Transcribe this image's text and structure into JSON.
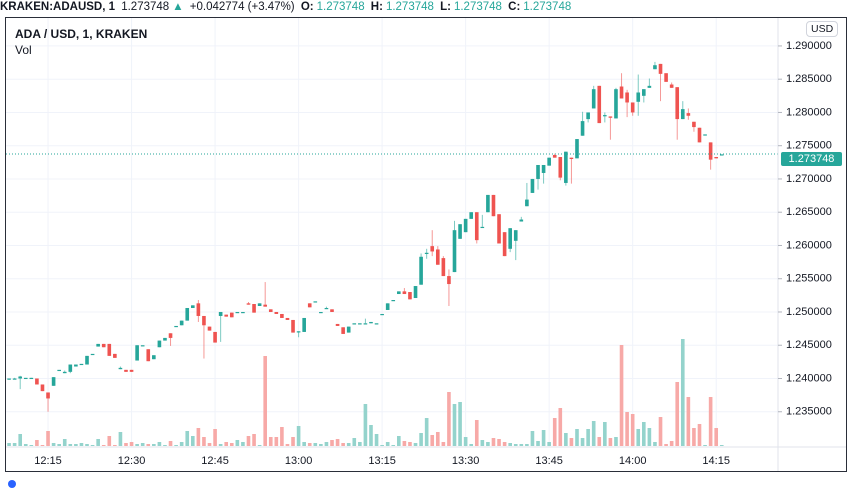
{
  "legend": {
    "symbol": "KRAKEN:ADAUSD, 1",
    "last": "1.273748",
    "arrow": "▲",
    "change": "+0.042774 (+3.47%)",
    "o_label": "O:",
    "o": "1.273748",
    "h_label": "H:",
    "h": "1.273748",
    "l_label": "L:",
    "l": "1.273748",
    "c_label": "C:",
    "c": "1.273748"
  },
  "pane": {
    "title": "ADA / USD, 1, KRAKEN",
    "vol_label": "Vol",
    "currency": "USD",
    "current_price": "1.273748"
  },
  "colors": {
    "up": "#26a69a",
    "down": "#ef5350",
    "vol_up": "#94d3cc",
    "vol_down": "#f7a9a7",
    "grid": "#f0f3fa"
  },
  "chart_data": {
    "type": "candlestick",
    "title": "ADA / USD, 1, KRAKEN",
    "ylabel": "USD",
    "ylim": [
      1.2297,
      1.2942
    ],
    "xlim_minutes_after_12": [
      7.45,
      146.1
    ],
    "volume_scale_max": 429,
    "current_price": 1.273748,
    "y_ticks": [
      "1.290000",
      "1.285000",
      "1.280000",
      "1.275000",
      "1.270000",
      "1.265000",
      "1.260000",
      "1.255000",
      "1.250000",
      "1.245000",
      "1.240000",
      "1.235000"
    ],
    "x_ticks": [
      "12:15",
      "12:30",
      "12:45",
      "13:00",
      "13:15",
      "13:30",
      "13:45",
      "14:00",
      "14:15"
    ],
    "candle_fields": [
      "time",
      "open",
      "high",
      "low",
      "close",
      "volume"
    ],
    "candles": [
      [
        "12:08",
        1.2399,
        1.24,
        1.2398,
        1.24,
        3
      ],
      [
        "12:09",
        1.24,
        1.2401,
        1.2399,
        1.24,
        3
      ],
      [
        "12:10",
        1.24,
        1.2404,
        1.2384,
        1.2403,
        12
      ],
      [
        "12:11",
        1.2401,
        1.2401,
        1.2401,
        1.2401,
        2
      ],
      [
        "12:12",
        1.2401,
        1.2401,
        1.24,
        1.2401,
        1
      ],
      [
        "12:13",
        1.24,
        1.24,
        1.2391,
        1.2391,
        6
      ],
      [
        "12:14",
        1.2391,
        1.2391,
        1.2381,
        1.2381,
        1
      ],
      [
        "12:15",
        1.2379,
        1.2379,
        1.235,
        1.237,
        15
      ],
      [
        "12:16",
        1.2389,
        1.2402,
        1.2389,
        1.2402,
        3
      ],
      [
        "12:17",
        1.2413,
        1.2413,
        1.2413,
        1.2413,
        2
      ],
      [
        "12:18",
        1.2408,
        1.2412,
        1.2408,
        1.241,
        7
      ],
      [
        "12:19",
        1.241,
        1.2421,
        1.2408,
        1.2421,
        2
      ],
      [
        "12:20",
        1.2418,
        1.2421,
        1.2418,
        1.2421,
        2
      ],
      [
        "12:21",
        1.2422,
        1.2422,
        1.2422,
        1.2422,
        3
      ],
      [
        "12:22",
        1.2421,
        1.2434,
        1.2421,
        1.2434,
        2
      ],
      [
        "12:23",
        1.2437,
        1.2437,
        1.2437,
        1.2437,
        1
      ],
      [
        "12:24",
        1.2448,
        1.2452,
        1.2448,
        1.2452,
        7
      ],
      [
        "12:25",
        1.2452,
        1.2452,
        1.2447,
        1.2447,
        1
      ],
      [
        "12:26",
        1.2452,
        1.2452,
        1.2434,
        1.2434,
        10
      ],
      [
        "12:27",
        1.2437,
        1.2437,
        1.2431,
        1.2431,
        1
      ],
      [
        "12:28",
        1.2414,
        1.2418,
        1.2414,
        1.2416,
        14
      ],
      [
        "12:29",
        1.2413,
        1.2413,
        1.241,
        1.241,
        3
      ],
      [
        "12:30",
        1.2413,
        1.2413,
        1.241,
        1.241,
        4
      ],
      [
        "12:31",
        1.2427,
        1.245,
        1.2427,
        1.245,
        2
      ],
      [
        "12:32",
        1.245,
        1.245,
        1.245,
        1.245,
        3
      ],
      [
        "12:33",
        1.2444,
        1.2444,
        1.2426,
        1.2426,
        2
      ],
      [
        "12:34",
        1.2429,
        1.2435,
        1.2429,
        1.2435,
        2
      ],
      [
        "12:35",
        1.2447,
        1.2457,
        1.2447,
        1.2457,
        4
      ],
      [
        "12:36",
        1.2457,
        1.2461,
        1.2457,
        1.2461,
        1
      ],
      [
        "12:37",
        1.2468,
        1.2468,
        1.2449,
        1.2461,
        5
      ],
      [
        "12:38",
        1.2479,
        1.2479,
        1.2479,
        1.2479,
        1
      ],
      [
        "12:39",
        1.248,
        1.2487,
        1.248,
        1.2487,
        4
      ],
      [
        "12:40",
        1.2487,
        1.2506,
        1.2487,
        1.2506,
        15
      ],
      [
        "12:41",
        1.2506,
        1.251,
        1.2506,
        1.251,
        10
      ],
      [
        "12:42",
        1.2513,
        1.2518,
        1.2485,
        1.2494,
        18
      ],
      [
        "12:43",
        1.2494,
        1.2494,
        1.243,
        1.248,
        9
      ],
      [
        "12:44",
        1.2478,
        1.2478,
        1.2472,
        1.2472,
        3
      ],
      [
        "12:45",
        1.247,
        1.247,
        1.2454,
        1.2454,
        17
      ],
      [
        "12:46",
        1.2494,
        1.25,
        1.2455,
        1.25,
        2
      ],
      [
        "12:47",
        1.2496,
        1.2496,
        1.2493,
        1.2493,
        4
      ],
      [
        "12:48",
        1.2499,
        1.2499,
        1.2492,
        1.2492,
        3
      ],
      [
        "12:49",
        1.25,
        1.25,
        1.25,
        1.25,
        6
      ],
      [
        "12:50",
        1.25,
        1.25,
        1.25,
        1.25,
        4
      ],
      [
        "12:51",
        1.2513,
        1.2515,
        1.2511,
        1.2511,
        10
      ],
      [
        "12:52",
        1.2512,
        1.2512,
        1.2499,
        1.2499,
        12
      ],
      [
        "12:53",
        1.2509,
        1.2513,
        1.2509,
        1.2513,
        1
      ],
      [
        "12:54",
        1.2511,
        1.2545,
        1.2508,
        1.2508,
        90
      ],
      [
        "12:55",
        1.2504,
        1.2504,
        1.25,
        1.25,
        9
      ],
      [
        "12:56",
        1.25,
        1.25,
        1.2497,
        1.2497,
        9
      ],
      [
        "12:57",
        1.2497,
        1.2497,
        1.2491,
        1.2491,
        19
      ],
      [
        "12:58",
        1.2491,
        1.2491,
        1.2488,
        1.2488,
        2
      ],
      [
        "12:59",
        1.2488,
        1.2488,
        1.2469,
        1.2469,
        9
      ],
      [
        "13:00",
        1.2471,
        1.2471,
        1.2462,
        1.2471,
        20
      ],
      [
        "13:01",
        1.247,
        1.2491,
        1.247,
        1.2491,
        4
      ],
      [
        "13:02",
        1.2513,
        1.2513,
        1.2507,
        1.2507,
        3
      ],
      [
        "13:03",
        1.2516,
        1.2516,
        1.2516,
        1.2516,
        3
      ],
      [
        "13:04",
        1.25,
        1.25,
        1.25,
        1.25,
        2
      ],
      [
        "13:05",
        1.2505,
        1.2508,
        1.2505,
        1.2506,
        4
      ],
      [
        "13:06",
        1.2504,
        1.2504,
        1.25,
        1.25,
        6
      ],
      [
        "13:07",
        1.2482,
        1.2482,
        1.2479,
        1.2479,
        7
      ],
      [
        "13:08",
        1.2477,
        1.2477,
        1.2467,
        1.2467,
        3
      ],
      [
        "13:09",
        1.2469,
        1.2478,
        1.2469,
        1.2478,
        3
      ],
      [
        "13:10",
        1.2483,
        1.2483,
        1.2483,
        1.2483,
        8
      ],
      [
        "13:11",
        1.2483,
        1.2483,
        1.2483,
        1.2483,
        4
      ],
      [
        "13:12",
        1.2483,
        1.249,
        1.2483,
        1.2483,
        42
      ],
      [
        "13:13",
        1.2483,
        1.2485,
        1.2483,
        1.2485,
        21
      ],
      [
        "13:14",
        1.2483,
        1.2483,
        1.2483,
        1.2483,
        12
      ],
      [
        "13:15",
        1.2497,
        1.2497,
        1.2497,
        1.2497,
        1
      ],
      [
        "13:16",
        1.2503,
        1.2513,
        1.2503,
        1.2513,
        4
      ],
      [
        "13:17",
        1.2518,
        1.2518,
        1.2518,
        1.2518,
        1
      ],
      [
        "13:18",
        1.2527,
        1.2531,
        1.2527,
        1.2531,
        10
      ],
      [
        "13:19",
        1.2531,
        1.2536,
        1.2527,
        1.2527,
        5
      ],
      [
        "13:20",
        1.253,
        1.253,
        1.2519,
        1.2519,
        4
      ],
      [
        "13:21",
        1.2521,
        1.2539,
        1.2521,
        1.2539,
        3
      ],
      [
        "13:22",
        1.2541,
        1.2588,
        1.2541,
        1.2583,
        13
      ],
      [
        "13:23",
        1.2589,
        1.2595,
        1.258,
        1.2589,
        28
      ],
      [
        "13:24",
        1.2599,
        1.2623,
        1.2584,
        1.2591,
        11
      ],
      [
        "13:25",
        1.2594,
        1.2599,
        1.2571,
        1.2571,
        14
      ],
      [
        "13:26",
        1.2581,
        1.2584,
        1.2554,
        1.2554,
        4
      ],
      [
        "13:27",
        1.2554,
        1.2564,
        1.2509,
        1.2542,
        54
      ],
      [
        "13:28",
        1.256,
        1.2637,
        1.256,
        1.2623,
        42
      ],
      [
        "13:29",
        1.261,
        1.2632,
        1.261,
        1.2632,
        44
      ],
      [
        "13:30",
        1.262,
        1.264,
        1.262,
        1.264,
        9
      ],
      [
        "13:31",
        1.264,
        1.265,
        1.264,
        1.265,
        2
      ],
      [
        "13:32",
        1.265,
        1.265,
        1.2603,
        1.2608,
        26
      ],
      [
        "13:33",
        1.2628,
        1.2646,
        1.2628,
        1.2628,
        6
      ],
      [
        "13:34",
        1.265,
        1.2676,
        1.265,
        1.2676,
        4
      ],
      [
        "13:35",
        1.2676,
        1.2676,
        1.2644,
        1.2644,
        8
      ],
      [
        "13:36",
        1.2647,
        1.2647,
        1.2603,
        1.2603,
        7
      ],
      [
        "13:37",
        1.262,
        1.262,
        1.2584,
        1.2584,
        4
      ],
      [
        "13:38",
        1.2595,
        1.2626,
        1.259,
        1.2626,
        3
      ],
      [
        "13:39",
        1.2607,
        1.2623,
        1.2578,
        1.2623,
        2
      ],
      [
        "13:40",
        1.2636,
        1.2643,
        1.2636,
        1.2639,
        2
      ],
      [
        "13:41",
        1.2659,
        1.2694,
        1.2659,
        1.2669,
        2
      ],
      [
        "13:42",
        1.2679,
        1.27,
        1.2679,
        1.27,
        15
      ],
      [
        "13:43",
        1.27,
        1.2721,
        1.2684,
        1.2721,
        5
      ],
      [
        "13:44",
        1.2709,
        1.2721,
        1.2693,
        1.2721,
        16
      ],
      [
        "13:45",
        1.272,
        1.2732,
        1.272,
        1.2732,
        4
      ],
      [
        "13:46",
        1.2736,
        1.2738,
        1.2732,
        1.2732,
        28
      ],
      [
        "13:47",
        1.2733,
        1.2733,
        1.2698,
        1.2702,
        38
      ],
      [
        "13:48",
        1.2694,
        1.2741,
        1.269,
        1.2741,
        13
      ],
      [
        "13:49",
        1.2732,
        1.2732,
        1.2693,
        1.273,
        8
      ],
      [
        "13:50",
        1.2731,
        1.276,
        1.2731,
        1.276,
        17
      ],
      [
        "13:51",
        1.2765,
        1.2801,
        1.2765,
        1.2787,
        8
      ],
      [
        "13:52",
        1.279,
        1.28,
        1.2785,
        1.28,
        17
      ],
      [
        "13:53",
        1.2806,
        1.284,
        1.2806,
        1.2835,
        25
      ],
      [
        "13:54",
        1.284,
        1.284,
        1.2784,
        1.2784,
        9
      ],
      [
        "13:55",
        1.2796,
        1.28,
        1.2785,
        1.2796,
        24
      ],
      [
        "13:56",
        1.2794,
        1.2794,
        1.2759,
        1.2792,
        8
      ],
      [
        "13:57",
        1.2791,
        1.2837,
        1.2791,
        1.2835,
        9
      ],
      [
        "13:58",
        1.2839,
        1.2859,
        1.2821,
        1.2821,
        101
      ],
      [
        "13:59",
        1.283,
        1.2834,
        1.2793,
        1.2815,
        34
      ],
      [
        "14:00",
        1.2815,
        1.2815,
        1.2795,
        1.28,
        32
      ],
      [
        "14:01",
        1.2816,
        1.2857,
        1.2795,
        1.283,
        17
      ],
      [
        "14:02",
        1.2825,
        1.2835,
        1.2815,
        1.2835,
        24
      ],
      [
        "14:03",
        1.2837,
        1.2851,
        1.2837,
        1.284,
        18
      ],
      [
        "14:04",
        1.2865,
        1.2876,
        1.2865,
        1.2871,
        4
      ],
      [
        "14:05",
        1.2873,
        1.2873,
        1.2817,
        1.2858,
        29
      ],
      [
        "14:06",
        1.2859,
        1.2859,
        1.2846,
        1.2846,
        2
      ],
      [
        "14:07",
        1.2842,
        1.2845,
        1.2837,
        1.2837,
        5
      ],
      [
        "14:08",
        1.2838,
        1.2838,
        1.2759,
        1.279,
        64
      ],
      [
        "14:09",
        1.279,
        1.2817,
        1.279,
        1.2805,
        107
      ],
      [
        "14:10",
        1.2799,
        1.2806,
        1.2789,
        1.2795,
        49
      ],
      [
        "14:11",
        1.2786,
        1.2786,
        1.2771,
        1.2778,
        18
      ],
      [
        "14:12",
        1.2777,
        1.2777,
        1.2755,
        1.2755,
        22
      ],
      [
        "14:13",
        1.2767,
        1.2767,
        1.2767,
        1.2767,
        1
      ],
      [
        "14:14",
        1.2755,
        1.2755,
        1.2714,
        1.2729,
        49
      ],
      [
        "14:15",
        1.2733,
        1.2733,
        1.2731,
        1.2731,
        18
      ],
      [
        "14:16",
        1.2737,
        1.2737,
        1.2737,
        1.2737,
        1
      ]
    ]
  }
}
